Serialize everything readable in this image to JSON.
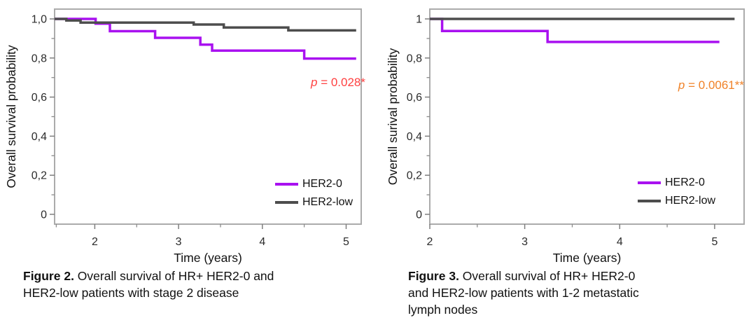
{
  "figures": [
    {
      "caption_bold": "Figure 2.",
      "caption_lines": [
        " Overall survival of HR+ HER2-0 and",
        "HER2-low patients with stage 2 disease"
      ]
    },
    {
      "caption_bold": "Figure 3.",
      "caption_lines": [
        " Overall survival of HR+ HER2-0",
        "and HER2-low patients with 1-2 metastatic",
        "lymph nodes"
      ]
    }
  ],
  "chart_data": [
    {
      "type": "line",
      "line_style": "step",
      "title": "",
      "xlabel": "Time (years)",
      "ylabel": "Overall survival probability",
      "xlim": [
        1.52,
        5.18
      ],
      "ylim": [
        -0.05,
        1.05
      ],
      "x_tick_values": [
        2,
        3,
        4,
        5
      ],
      "x_tick_labels": [
        "2",
        "3",
        "4",
        "5"
      ],
      "x_minor_ticks": [
        1.54,
        2.5,
        3.5,
        4.5
      ],
      "y_tick_values": [
        1.0,
        0.8,
        0.6,
        0.4,
        0.2,
        0
      ],
      "y_tick_labels": [
        "1,0",
        "0,8",
        "0,6",
        "0,4",
        "0,2",
        "0"
      ],
      "y_minor_ticks": [
        0.9,
        0.7,
        0.5,
        0.3,
        0.1
      ],
      "grid": false,
      "legend_position": "bottom-right",
      "annotation": {
        "prefix_italic": "p",
        "rest": " = 0.028*",
        "color": "#FF4040"
      },
      "series": [
        {
          "name": "HER2-0",
          "color": "#A911F0",
          "steps": [
            [
              1.52,
              1.0
            ],
            [
              2.01,
              0.976
            ],
            [
              2.18,
              0.937
            ],
            [
              2.72,
              0.903
            ],
            [
              3.26,
              0.868
            ],
            [
              3.4,
              0.838
            ],
            [
              4.5,
              0.797
            ],
            [
              5.12,
              0.797
            ]
          ]
        },
        {
          "name": "HER2-low",
          "color": "#4D4D4D",
          "steps": [
            [
              1.52,
              1.0
            ],
            [
              1.66,
              0.992
            ],
            [
              1.83,
              0.981
            ],
            [
              3.18,
              0.971
            ],
            [
              3.54,
              0.956
            ],
            [
              4.31,
              0.941
            ],
            [
              5.12,
              0.941
            ]
          ]
        }
      ]
    },
    {
      "type": "line",
      "line_style": "step",
      "title": "",
      "xlabel": "Time (years)",
      "ylabel": "Overall surival probability",
      "xlim": [
        2.0,
        5.31
      ],
      "ylim": [
        -0.05,
        1.05
      ],
      "x_tick_values": [
        2,
        3,
        4,
        5
      ],
      "x_tick_labels": [
        "2",
        "3",
        "4",
        "5"
      ],
      "x_minor_ticks": [
        2.5,
        3.5,
        4.5
      ],
      "y_tick_values": [
        1.0,
        0.8,
        0.6,
        0.4,
        0.2,
        0
      ],
      "y_tick_labels": [
        "1",
        "0,8",
        "0,6",
        "0,4",
        "0,2",
        "0"
      ],
      "y_minor_ticks": [
        0.9,
        0.7,
        0.5,
        0.3,
        0.1
      ],
      "grid": false,
      "legend_position": "bottom-right",
      "annotation": {
        "prefix_italic": "p",
        "rest": " = 0.0061**",
        "color": "#F08228"
      },
      "series": [
        {
          "name": "HER2-0",
          "color": "#A911F0",
          "steps": [
            [
              2.0,
              1.0
            ],
            [
              2.13,
              0.938
            ],
            [
              3.24,
              0.882
            ],
            [
              5.05,
              0.882
            ]
          ]
        },
        {
          "name": "HER2-low",
          "color": "#4D4D4D",
          "steps": [
            [
              2.0,
              1.0
            ],
            [
              5.21,
              1.0
            ]
          ]
        }
      ]
    }
  ]
}
